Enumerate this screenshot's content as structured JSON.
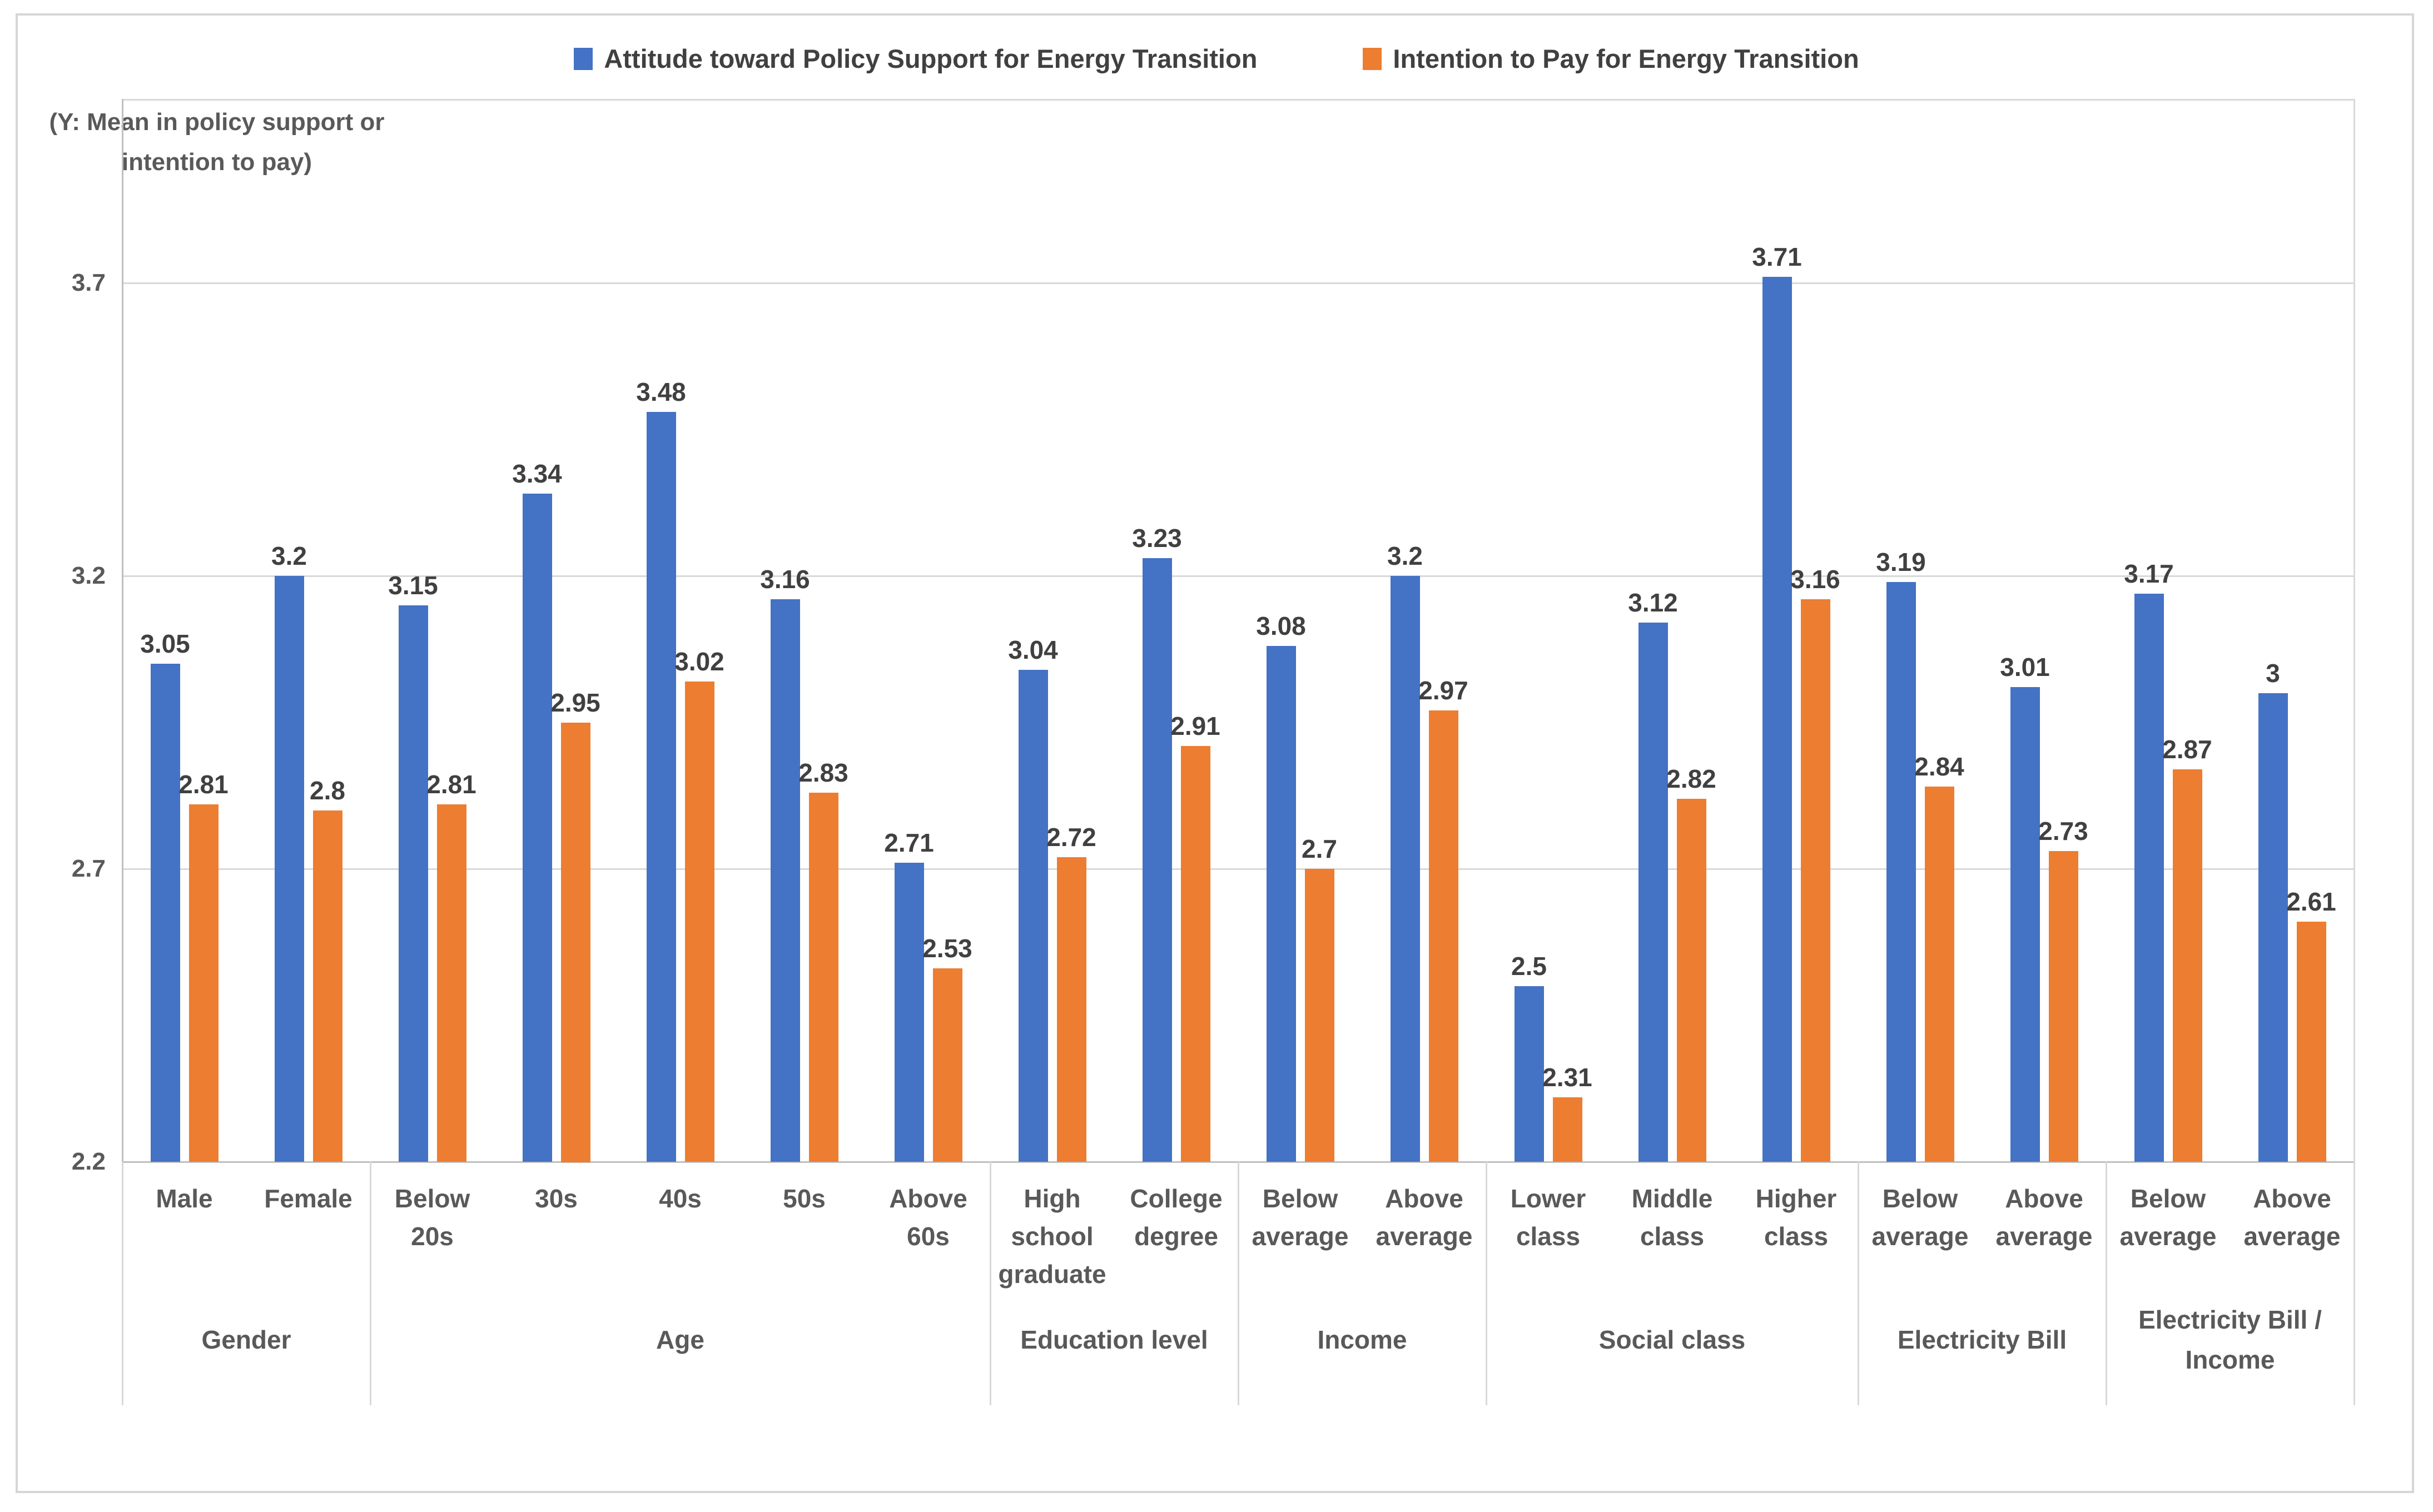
{
  "chart_data": {
    "type": "bar",
    "title": "",
    "legend_position": "top",
    "grid": true,
    "colors": {
      "attitude": "#4472C4",
      "intention": "#ED7D31",
      "data_label_text": "#404040",
      "axis_text": "#595959",
      "gridline": "#d9d9d9",
      "axis_line": "#bfbfbf"
    },
    "legend": [
      {
        "label": "Attitude toward Policy Support for Energy Transition",
        "color": "#4472C4"
      },
      {
        "label": "Intention to Pay for Energy Transition",
        "color": "#ED7D31"
      }
    ],
    "y_axis_title": [
      "(Y: Mean in policy support or",
      "intention to pay)"
    ],
    "y_ticks": [
      2.2,
      2.7,
      3.2,
      3.7
    ],
    "ylim": [
      2.2,
      4.0
    ],
    "series_names": [
      "Attitude toward Policy Support for Energy Transition",
      "Intention to Pay for Energy Transition"
    ],
    "groups": [
      {
        "label": "Gender",
        "items": [
          {
            "label": "Male",
            "attitude": 3.05,
            "intention": 2.81
          },
          {
            "label": "Female",
            "attitude": 3.2,
            "intention": 2.8
          }
        ]
      },
      {
        "label": "Age",
        "items": [
          {
            "label": "Below 20s",
            "attitude": 3.15,
            "intention": 2.81
          },
          {
            "label": "30s",
            "attitude": 3.34,
            "intention": 2.95
          },
          {
            "label": "40s",
            "attitude": 3.48,
            "intention": 3.02
          },
          {
            "label": "50s",
            "attitude": 3.16,
            "intention": 2.83
          },
          {
            "label": "Above 60s",
            "attitude": 2.71,
            "intention": 2.53
          }
        ]
      },
      {
        "label": "Education level",
        "items": [
          {
            "label": "High school graduate",
            "attitude": 3.04,
            "intention": 2.72
          },
          {
            "label": "College degree",
            "attitude": 3.23,
            "intention": 2.91
          }
        ]
      },
      {
        "label": "Income",
        "items": [
          {
            "label": "Below average",
            "attitude": 3.08,
            "intention": 2.7
          },
          {
            "label": "Above average",
            "attitude": 3.2,
            "intention": 2.97
          }
        ]
      },
      {
        "label": "Social class",
        "items": [
          {
            "label": "Lower class",
            "attitude": 2.5,
            "intention": 2.31
          },
          {
            "label": "Middle class",
            "attitude": 3.12,
            "intention": 2.82
          },
          {
            "label": "Higher class",
            "attitude": 3.71,
            "intention": 3.16
          }
        ]
      },
      {
        "label": "Electricity Bill",
        "items": [
          {
            "label": "Below average",
            "attitude": 3.19,
            "intention": 2.84
          },
          {
            "label": "Above average",
            "attitude": 3.01,
            "intention": 2.73
          }
        ]
      },
      {
        "label": "Electricity Bill / Income",
        "items": [
          {
            "label": "Below average",
            "attitude": 3.17,
            "intention": 2.87
          },
          {
            "label": "Above average",
            "attitude": 3,
            "intention": 2.61
          }
        ]
      }
    ]
  }
}
